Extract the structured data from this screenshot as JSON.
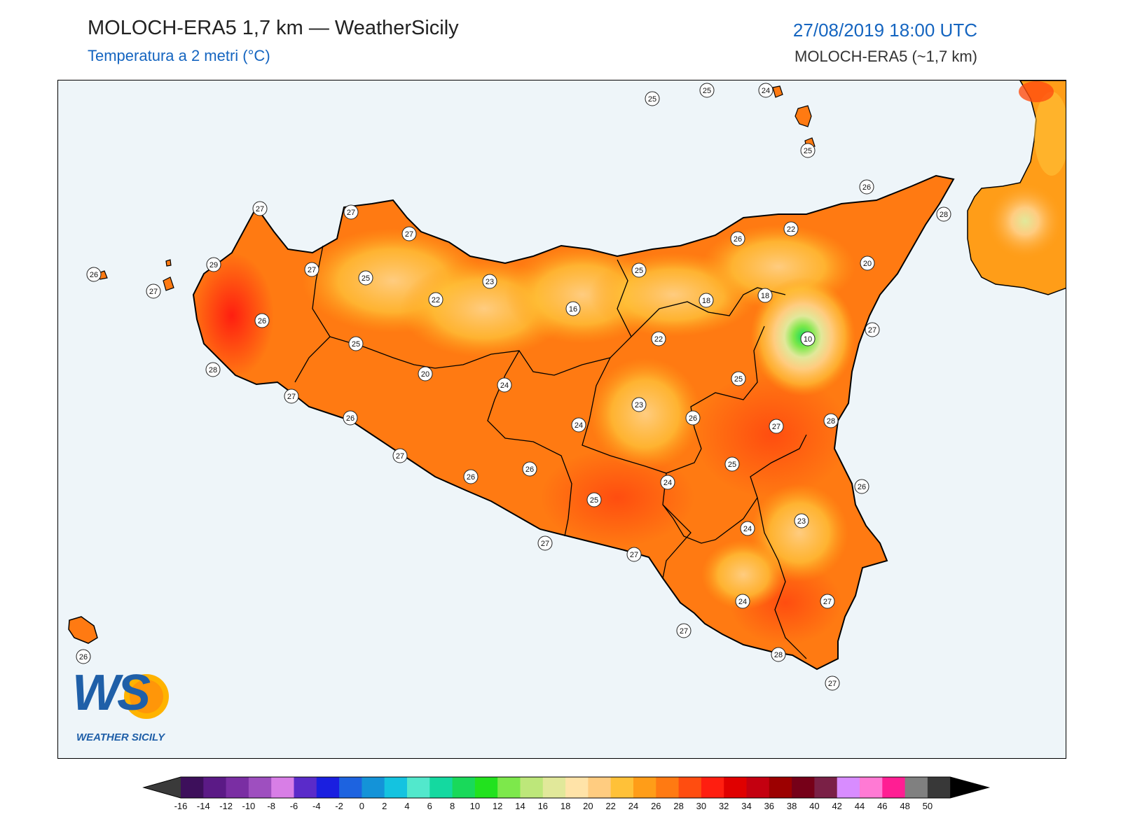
{
  "header": {
    "title": "MOLOCH-ERA5 1,7 km — WeatherSicily",
    "subtitle": "Temperatura a 2 metri (°C)",
    "datetime": "27/08/2019 18:00 UTC",
    "model": "MOLOCH-ERA5 (~1,7 km)"
  },
  "logo": {
    "initials": "WS",
    "text": "WEATHER SICILY"
  },
  "colors": {
    "sea": "#eef5f9",
    "land_base": "#ff7a12",
    "title_blue": "#1565c0"
  },
  "colorbar": {
    "ticks": [
      "-16",
      "-14",
      "-12",
      "-10",
      "-8",
      "-6",
      "-4",
      "-2",
      "0",
      "2",
      "4",
      "6",
      "8",
      "10",
      "12",
      "14",
      "16",
      "18",
      "20",
      "22",
      "24",
      "26",
      "28",
      "30",
      "32",
      "34",
      "36",
      "38",
      "40",
      "42",
      "44",
      "46",
      "48",
      "50"
    ],
    "colors": [
      "#3d0f5b",
      "#5b1a86",
      "#7a2ea3",
      "#9e4fbf",
      "#d87ee6",
      "#5a2bc9",
      "#1a1fe0",
      "#1d63e0",
      "#1493d8",
      "#14c3e0",
      "#52e8cc",
      "#14d9a0",
      "#19d95a",
      "#22e21e",
      "#7de84b",
      "#bde77a",
      "#e1e89a",
      "#ffe3a8",
      "#ffcc80",
      "#ffc138",
      "#ff9d18",
      "#ff7a12",
      "#ff4d10",
      "#ff1e10",
      "#e00000",
      "#c40010",
      "#9c0000",
      "#760018",
      "#7a2046",
      "#d88cff",
      "#ff7ad4",
      "#ff1e93",
      "#808080",
      "#383838"
    ],
    "under_color": "#3a3a3a",
    "over_color": "#000000"
  },
  "station_values": [
    {
      "id": "s1",
      "v": "25"
    },
    {
      "id": "s2",
      "v": "25"
    },
    {
      "id": "s3",
      "v": "24"
    },
    {
      "id": "s4",
      "v": "25"
    },
    {
      "id": "s5",
      "v": "26"
    },
    {
      "id": "s6",
      "v": "28"
    },
    {
      "id": "s7",
      "v": "27"
    },
    {
      "id": "s8",
      "v": "27"
    },
    {
      "id": "s9",
      "v": "27"
    },
    {
      "id": "s10",
      "v": "29"
    },
    {
      "id": "s11",
      "v": "27"
    },
    {
      "id": "s12",
      "v": "25"
    },
    {
      "id": "s13",
      "v": "23"
    },
    {
      "id": "s14",
      "v": "22"
    },
    {
      "id": "s15",
      "v": "26"
    },
    {
      "id": "s16",
      "v": "22"
    },
    {
      "id": "s17",
      "v": "20"
    },
    {
      "id": "s18",
      "v": "25"
    },
    {
      "id": "s19",
      "v": "26"
    },
    {
      "id": "s20",
      "v": "18"
    },
    {
      "id": "s21",
      "v": "18"
    },
    {
      "id": "s22",
      "v": "16"
    },
    {
      "id": "s23",
      "v": "22"
    },
    {
      "id": "s24",
      "v": "10"
    },
    {
      "id": "s25",
      "v": "27"
    },
    {
      "id": "s26",
      "v": "26"
    },
    {
      "id": "s27",
      "v": "27"
    },
    {
      "id": "s28",
      "v": "25"
    },
    {
      "id": "s29",
      "v": "28"
    },
    {
      "id": "s30",
      "v": "25"
    },
    {
      "id": "s31",
      "v": "20"
    },
    {
      "id": "s32",
      "v": "24"
    },
    {
      "id": "s33",
      "v": "23"
    },
    {
      "id": "s34",
      "v": "26"
    },
    {
      "id": "s35",
      "v": "27"
    },
    {
      "id": "s36",
      "v": "28"
    },
    {
      "id": "s37",
      "v": "26"
    },
    {
      "id": "s38",
      "v": "24"
    },
    {
      "id": "s39",
      "v": "27"
    },
    {
      "id": "s40",
      "v": "26"
    },
    {
      "id": "s41",
      "v": "25"
    },
    {
      "id": "s42",
      "v": "25"
    },
    {
      "id": "s43",
      "v": "24"
    },
    {
      "id": "s44",
      "v": "26"
    },
    {
      "id": "s45",
      "v": "24"
    },
    {
      "id": "s46",
      "v": "23"
    },
    {
      "id": "s47",
      "v": "27"
    },
    {
      "id": "s48",
      "v": "26"
    },
    {
      "id": "s49",
      "v": "27"
    },
    {
      "id": "s50",
      "v": "27"
    },
    {
      "id": "s51",
      "v": "24"
    },
    {
      "id": "s52",
      "v": "27"
    },
    {
      "id": "s53",
      "v": "27"
    },
    {
      "id": "s54",
      "v": "28"
    },
    {
      "id": "s55",
      "v": "27"
    },
    {
      "id": "s56",
      "v": "26"
    }
  ]
}
